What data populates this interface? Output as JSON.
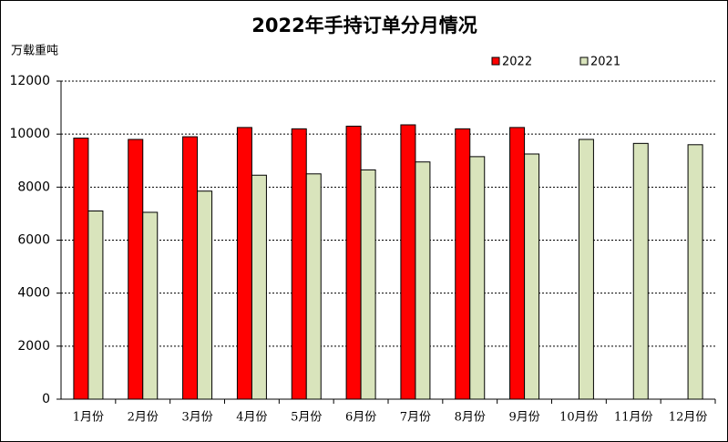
{
  "chart_data": {
    "type": "bar",
    "title": "2022年手持订单分月情况",
    "y_label": "万载重吨",
    "categories": [
      "1月份",
      "2月份",
      "3月份",
      "4月份",
      "5月份",
      "6月份",
      "7月份",
      "8月份",
      "9月份",
      "10月份",
      "11月份",
      "12月份"
    ],
    "series": [
      {
        "name": "2022",
        "color": "#ff0000",
        "values": [
          9850,
          9800,
          9900,
          10250,
          10200,
          10300,
          10350,
          10200,
          10250,
          null,
          null,
          null
        ]
      },
      {
        "name": "2021",
        "color": "#d9e4bc",
        "values": [
          7100,
          7050,
          7850,
          8450,
          8500,
          8650,
          8950,
          9150,
          9250,
          9800,
          9650,
          9600
        ]
      }
    ],
    "ylim": [
      0,
      12000
    ],
    "yticks": [
      0,
      2000,
      4000,
      6000,
      8000,
      10000,
      12000
    ],
    "grid": true,
    "legend": "top-right"
  }
}
